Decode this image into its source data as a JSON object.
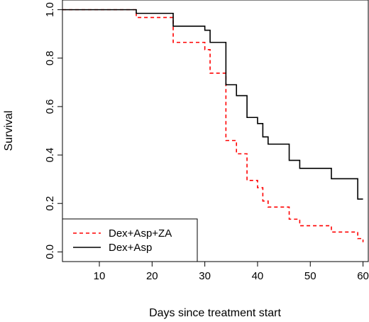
{
  "chart_data": {
    "type": "line",
    "subtype": "step",
    "title": "",
    "xlabel": "Days since treatment start",
    "ylabel": "Survival",
    "xlim": [
      3,
      61
    ],
    "ylim": [
      -0.04,
      1.04
    ],
    "xticks": [
      10,
      20,
      30,
      40,
      50,
      60
    ],
    "yticks": [
      0.0,
      0.2,
      0.4,
      0.6,
      0.8,
      1.0
    ],
    "ytick_labels": [
      "0.0",
      "0.2",
      "0.4",
      "0.6",
      "0.8",
      "1.0"
    ],
    "grid": false,
    "legend_position": "bottom-left",
    "series": [
      {
        "name": "Dex+Asp+ZA",
        "color": "#ff0000",
        "linestyle": "dashed",
        "x": [
          3,
          17,
          24,
          30,
          31,
          34,
          36,
          38,
          40,
          41,
          42,
          46,
          48,
          54,
          59,
          60
        ],
        "y": [
          1.0,
          0.968,
          0.865,
          0.835,
          0.738,
          0.46,
          0.405,
          0.295,
          0.265,
          0.21,
          0.185,
          0.135,
          0.108,
          0.082,
          0.055,
          0.04
        ]
      },
      {
        "name": "Dex+Asp",
        "color": "#000000",
        "linestyle": "solid",
        "x": [
          3,
          17,
          24,
          30,
          31,
          34,
          36,
          38,
          40,
          41,
          42,
          46,
          48,
          54,
          59,
          60
        ],
        "y": [
          1.0,
          0.985,
          0.932,
          0.915,
          0.865,
          0.69,
          0.645,
          0.555,
          0.53,
          0.475,
          0.445,
          0.378,
          0.345,
          0.302,
          0.218,
          0.218
        ]
      }
    ]
  }
}
